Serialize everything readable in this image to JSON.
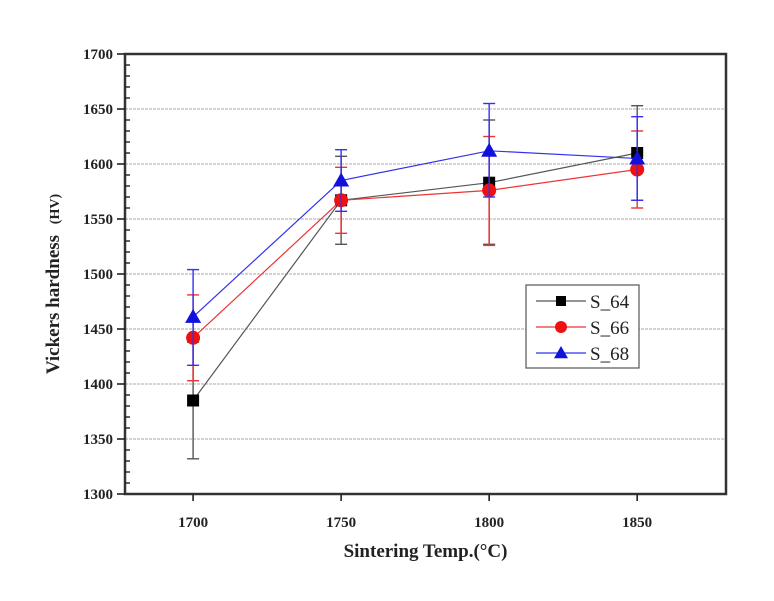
{
  "chart_data": {
    "type": "line",
    "title": "",
    "xlabel": "Sintering Temp.(°C)",
    "ylabel": "Vickers hardness",
    "ylabel_unit": "(HV)",
    "x": [
      1700,
      1750,
      1800,
      1850
    ],
    "xlim": [
      1677,
      1880
    ],
    "ylim": [
      1300,
      1700
    ],
    "xticks": [
      1700,
      1750,
      1800,
      1850
    ],
    "yticks": [
      1300,
      1350,
      1400,
      1450,
      1500,
      1550,
      1600,
      1650,
      1700
    ],
    "grid": "horizontal-dashed",
    "legend_position": "right-center",
    "series": [
      {
        "name": "S_64",
        "color": "#000000",
        "line_color": "#555555",
        "marker": "square",
        "values": [
          1385,
          1567,
          1583,
          1610
        ],
        "err_low": [
          1332,
          1527,
          1527,
          1567
        ],
        "err_high": [
          1438,
          1607,
          1640,
          1653
        ]
      },
      {
        "name": "S_66",
        "color": "#ee1111",
        "line_color": "#ee3333",
        "marker": "circle",
        "values": [
          1442,
          1567,
          1576,
          1595
        ],
        "err_low": [
          1403,
          1537,
          1526,
          1560
        ],
        "err_high": [
          1481,
          1597,
          1625,
          1630
        ]
      },
      {
        "name": "S_68",
        "color": "#1111dd",
        "line_color": "#3333ee",
        "marker": "triangle",
        "values": [
          1461,
          1585,
          1612,
          1605
        ],
        "err_low": [
          1417,
          1557,
          1570,
          1567
        ],
        "err_high": [
          1504,
          1613,
          1655,
          1643
        ]
      }
    ]
  }
}
